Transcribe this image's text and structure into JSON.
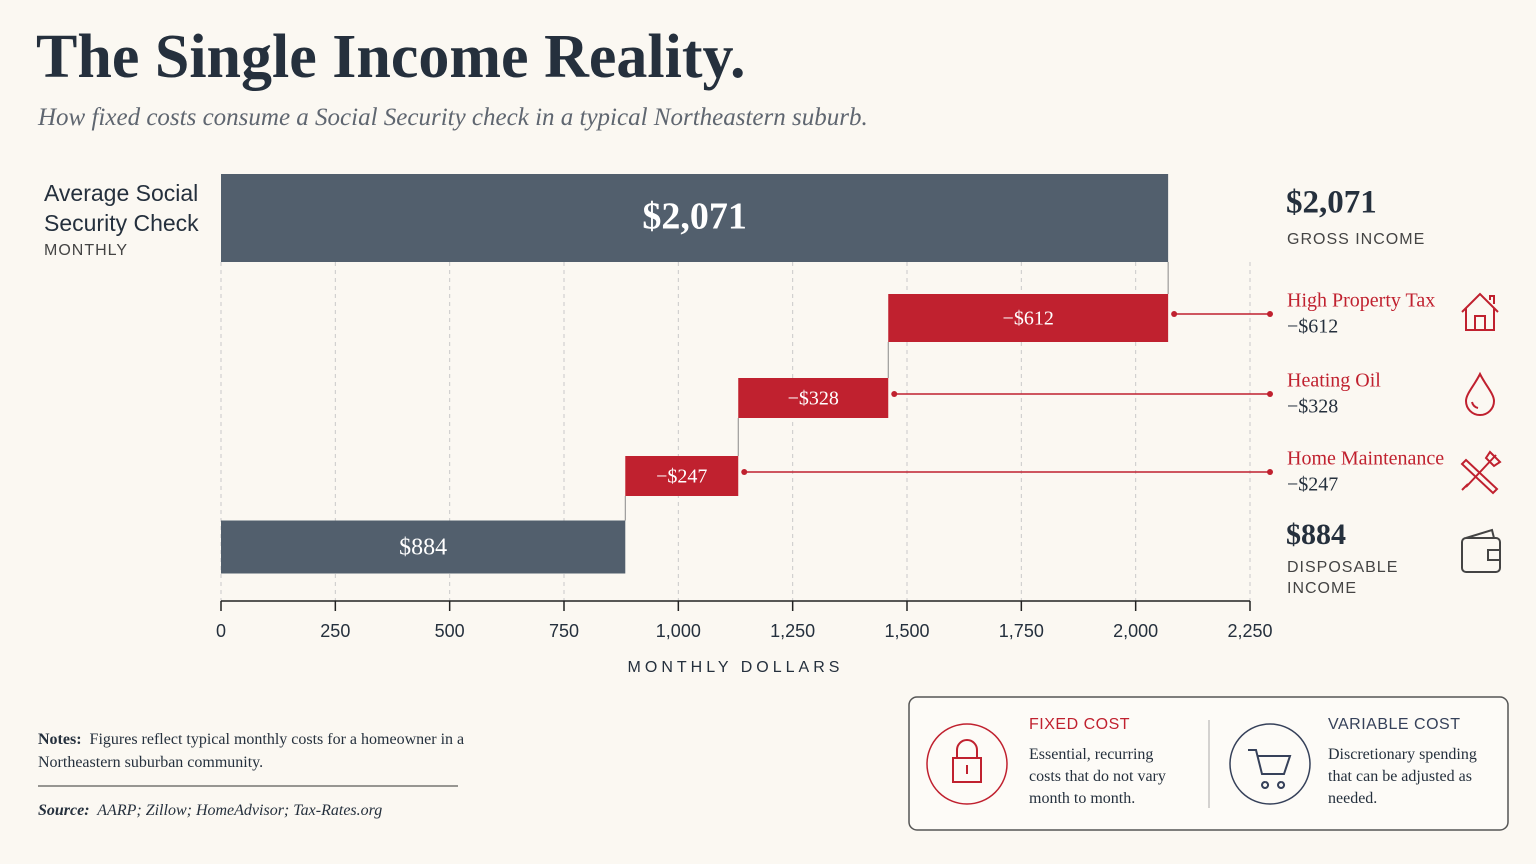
{
  "header": {
    "title": "The Single Income Reality.",
    "subtitle": "How fixed costs consume a Social Security check in a typical Northeastern suburb."
  },
  "chart_data": {
    "type": "waterfall",
    "categories": [
      "Average Social Security Check",
      "High Property Tax",
      "Heating Oil",
      "Home Maintenance",
      "DISPOSABLE INCOME"
    ],
    "category_note": "MONTHLY",
    "gross_label": "GROSS INCOME",
    "values": [
      2071,
      -612,
      -328,
      -247,
      884
    ],
    "value_labels": [
      "$2,071",
      "−$612",
      "−$328",
      "−$247",
      "$884"
    ],
    "measure": [
      "absolute",
      "relative",
      "relative",
      "relative",
      "total"
    ],
    "colors": [
      "#525f6d",
      "#c0212f",
      "#c0212f",
      "#c0212f",
      "#525f6d"
    ],
    "xlabel": "MONTHLY DOLLARS",
    "xlim": [
      0,
      2250
    ],
    "xticks": [
      0,
      250,
      500,
      750,
      {
        "value": 1000,
        "label": "1,000"
      },
      {
        "value": 1250,
        "label": "1,250"
      },
      {
        "value": 1500,
        "label": "1,500"
      },
      {
        "value": 1750,
        "label": "1,750"
      },
      {
        "value": 2000,
        "label": "2,000"
      },
      {
        "value": 2250,
        "label": "2,250"
      }
    ],
    "grid": true
  },
  "notes": {
    "label": "Notes:",
    "text": "Figures reflect typical monthly costs for a homeowner in a Northeastern suburban community."
  },
  "source": {
    "label": "Source:",
    "text": "AARP; Zillow; HomeAdvisor; Tax-Rates.org"
  },
  "legend": [
    {
      "title": "FIXED COST",
      "text": "Essential, recurring costs that do not vary month to month."
    },
    {
      "title": "VARIABLE COST",
      "text": "Discretionary spending that can be adjusted as needed."
    }
  ]
}
